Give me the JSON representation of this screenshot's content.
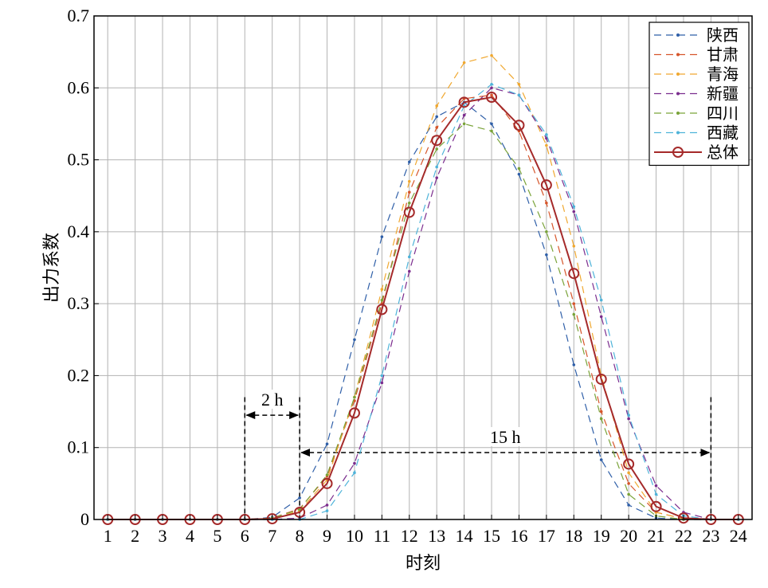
{
  "chart_data": {
    "type": "line",
    "title": "",
    "xlabel": "时刻",
    "ylabel": "出力系数",
    "x": [
      1,
      2,
      3,
      4,
      5,
      6,
      7,
      8,
      9,
      10,
      11,
      12,
      13,
      14,
      15,
      16,
      17,
      18,
      19,
      20,
      21,
      22,
      23,
      24
    ],
    "xlim": [
      0.5,
      24.5
    ],
    "ylim": [
      0,
      0.7
    ],
    "yticks": [
      0,
      0.1,
      0.2,
      0.3,
      0.4,
      0.5,
      0.6,
      0.7
    ],
    "ytick_labels": [
      "0",
      "0.1",
      "0.2",
      "0.3",
      "0.4",
      "0.5",
      "0.6",
      "0.7"
    ],
    "grid": true,
    "legend_position": "top-right",
    "series": [
      {
        "name": "陕西",
        "color": "#2f5fa8",
        "style": "dashed",
        "values": [
          0,
          0,
          0,
          0,
          0,
          0,
          0.003,
          0.03,
          0.105,
          0.25,
          0.393,
          0.497,
          0.56,
          0.58,
          0.55,
          0.48,
          0.368,
          0.215,
          0.083,
          0.02,
          0.002,
          0,
          0,
          0
        ]
      },
      {
        "name": "甘肃",
        "color": "#d6552a",
        "style": "dashed",
        "values": [
          0,
          0,
          0,
          0,
          0,
          0,
          0.002,
          0.015,
          0.06,
          0.165,
          0.3,
          0.455,
          0.545,
          0.585,
          0.59,
          0.54,
          0.44,
          0.3,
          0.15,
          0.05,
          0.01,
          0.001,
          0,
          0
        ]
      },
      {
        "name": "青海",
        "color": "#f0a830",
        "style": "dashed",
        "values": [
          0,
          0,
          0,
          0,
          0,
          0,
          0.001,
          0.012,
          0.055,
          0.17,
          0.32,
          0.47,
          0.575,
          0.635,
          0.645,
          0.605,
          0.52,
          0.38,
          0.2,
          0.065,
          0.01,
          0.001,
          0,
          0
        ]
      },
      {
        "name": "新疆",
        "color": "#7b2d8e",
        "style": "dashed",
        "values": [
          0,
          0,
          0,
          0,
          0,
          0,
          0,
          0.002,
          0.02,
          0.078,
          0.19,
          0.345,
          0.475,
          0.562,
          0.6,
          0.59,
          0.53,
          0.428,
          0.282,
          0.14,
          0.047,
          0.01,
          0,
          0
        ]
      },
      {
        "name": "四川",
        "color": "#7aa339",
        "style": "dashed",
        "values": [
          0,
          0,
          0,
          0,
          0,
          0,
          0.002,
          0.014,
          0.062,
          0.17,
          0.305,
          0.44,
          0.515,
          0.55,
          0.54,
          0.488,
          0.4,
          0.285,
          0.14,
          0.035,
          0.005,
          0,
          0,
          0
        ]
      },
      {
        "name": "西藏",
        "color": "#4eb3d9",
        "style": "dashed",
        "values": [
          0,
          0,
          0,
          0,
          0,
          0,
          0,
          0,
          0.012,
          0.065,
          0.2,
          0.365,
          0.49,
          0.575,
          0.605,
          0.59,
          0.535,
          0.435,
          0.305,
          0.145,
          0.035,
          0.005,
          0,
          0
        ]
      },
      {
        "name": "总体",
        "color": "#a52a2a",
        "style": "solid",
        "marker": "circle",
        "values": [
          0,
          0,
          0,
          0,
          0,
          0,
          0.001,
          0.01,
          0.05,
          0.148,
          0.292,
          0.427,
          0.527,
          0.58,
          0.587,
          0.548,
          0.465,
          0.342,
          0.195,
          0.077,
          0.018,
          0.002,
          0,
          0
        ]
      }
    ],
    "annotations": [
      {
        "text": "2 h",
        "from_x": 6,
        "to_x": 8,
        "y": 0.145
      },
      {
        "text": "15 h",
        "from_x": 8,
        "to_x": 23,
        "y": 0.093
      }
    ]
  }
}
